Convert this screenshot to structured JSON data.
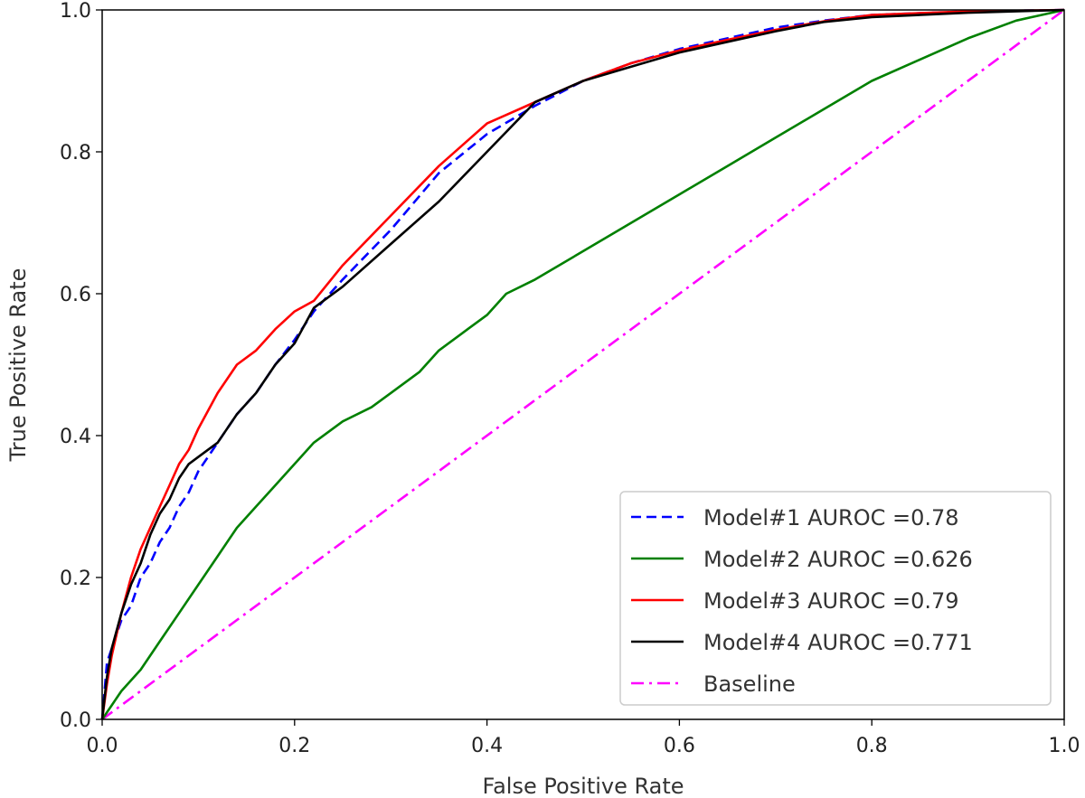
{
  "chart_data": {
    "type": "line",
    "title": "",
    "xlabel": "False Positive Rate",
    "ylabel": "True Positive Rate",
    "xlim": [
      0.0,
      1.0
    ],
    "ylim": [
      0.0,
      1.0
    ],
    "xticks": [
      "0.0",
      "0.2",
      "0.4",
      "0.6",
      "0.8",
      "1.0"
    ],
    "yticks": [
      "0.0",
      "0.2",
      "0.4",
      "0.6",
      "0.8",
      "1.0"
    ],
    "grid": false,
    "legend_position": "lower-right",
    "series": [
      {
        "name": "Model#1 AUROC =0.78",
        "color": "#0000ff",
        "style": "dashed",
        "points": [
          [
            0,
            0
          ],
          [
            0.005,
            0.08
          ],
          [
            0.01,
            0.1
          ],
          [
            0.02,
            0.14
          ],
          [
            0.03,
            0.16
          ],
          [
            0.04,
            0.2
          ],
          [
            0.05,
            0.22
          ],
          [
            0.06,
            0.25
          ],
          [
            0.07,
            0.27
          ],
          [
            0.08,
            0.3
          ],
          [
            0.09,
            0.32
          ],
          [
            0.1,
            0.35
          ],
          [
            0.12,
            0.39
          ],
          [
            0.14,
            0.43
          ],
          [
            0.16,
            0.46
          ],
          [
            0.18,
            0.5
          ],
          [
            0.2,
            0.535
          ],
          [
            0.22,
            0.575
          ],
          [
            0.25,
            0.62
          ],
          [
            0.3,
            0.69
          ],
          [
            0.35,
            0.77
          ],
          [
            0.4,
            0.825
          ],
          [
            0.45,
            0.865
          ],
          [
            0.5,
            0.9
          ],
          [
            0.55,
            0.925
          ],
          [
            0.6,
            0.945
          ],
          [
            0.65,
            0.96
          ],
          [
            0.7,
            0.975
          ],
          [
            0.75,
            0.985
          ],
          [
            0.8,
            0.993
          ],
          [
            0.9,
            0.998
          ],
          [
            1.0,
            1.0
          ]
        ]
      },
      {
        "name": "Model#2 AUROC =0.626",
        "color": "#008000",
        "style": "solid",
        "points": [
          [
            0,
            0
          ],
          [
            0.02,
            0.04
          ],
          [
            0.04,
            0.07
          ],
          [
            0.06,
            0.11
          ],
          [
            0.08,
            0.15
          ],
          [
            0.1,
            0.19
          ],
          [
            0.12,
            0.23
          ],
          [
            0.14,
            0.27
          ],
          [
            0.16,
            0.3
          ],
          [
            0.18,
            0.33
          ],
          [
            0.2,
            0.36
          ],
          [
            0.22,
            0.39
          ],
          [
            0.25,
            0.42
          ],
          [
            0.28,
            0.44
          ],
          [
            0.3,
            0.46
          ],
          [
            0.33,
            0.49
          ],
          [
            0.35,
            0.52
          ],
          [
            0.38,
            0.55
          ],
          [
            0.4,
            0.57
          ],
          [
            0.42,
            0.6
          ],
          [
            0.45,
            0.62
          ],
          [
            0.5,
            0.66
          ],
          [
            0.55,
            0.7
          ],
          [
            0.6,
            0.74
          ],
          [
            0.65,
            0.78
          ],
          [
            0.7,
            0.82
          ],
          [
            0.75,
            0.86
          ],
          [
            0.8,
            0.9
          ],
          [
            0.85,
            0.93
          ],
          [
            0.9,
            0.96
          ],
          [
            0.95,
            0.985
          ],
          [
            1.0,
            1.0
          ]
        ]
      },
      {
        "name": "Model#3 AUROC =0.79",
        "color": "#ff0000",
        "style": "solid",
        "points": [
          [
            0,
            0
          ],
          [
            0.005,
            0.05
          ],
          [
            0.01,
            0.09
          ],
          [
            0.02,
            0.15
          ],
          [
            0.03,
            0.2
          ],
          [
            0.04,
            0.24
          ],
          [
            0.05,
            0.27
          ],
          [
            0.06,
            0.3
          ],
          [
            0.07,
            0.33
          ],
          [
            0.08,
            0.36
          ],
          [
            0.09,
            0.38
          ],
          [
            0.1,
            0.41
          ],
          [
            0.12,
            0.46
          ],
          [
            0.14,
            0.5
          ],
          [
            0.16,
            0.52
          ],
          [
            0.18,
            0.55
          ],
          [
            0.2,
            0.575
          ],
          [
            0.22,
            0.59
          ],
          [
            0.25,
            0.64
          ],
          [
            0.3,
            0.71
          ],
          [
            0.35,
            0.78
          ],
          [
            0.4,
            0.84
          ],
          [
            0.45,
            0.87
          ],
          [
            0.5,
            0.9
          ],
          [
            0.55,
            0.925
          ],
          [
            0.6,
            0.943
          ],
          [
            0.65,
            0.958
          ],
          [
            0.7,
            0.972
          ],
          [
            0.75,
            0.984
          ],
          [
            0.8,
            0.993
          ],
          [
            0.9,
            0.998
          ],
          [
            1.0,
            1.0
          ]
        ]
      },
      {
        "name": "Model#4 AUROC =0.771",
        "color": "#000000",
        "style": "solid",
        "points": [
          [
            0,
            0
          ],
          [
            0.005,
            0.06
          ],
          [
            0.01,
            0.1
          ],
          [
            0.02,
            0.15
          ],
          [
            0.03,
            0.19
          ],
          [
            0.04,
            0.22
          ],
          [
            0.05,
            0.26
          ],
          [
            0.06,
            0.29
          ],
          [
            0.07,
            0.31
          ],
          [
            0.08,
            0.34
          ],
          [
            0.09,
            0.36
          ],
          [
            0.1,
            0.37
          ],
          [
            0.12,
            0.39
          ],
          [
            0.14,
            0.43
          ],
          [
            0.16,
            0.46
          ],
          [
            0.18,
            0.5
          ],
          [
            0.2,
            0.53
          ],
          [
            0.22,
            0.58
          ],
          [
            0.25,
            0.61
          ],
          [
            0.3,
            0.67
          ],
          [
            0.35,
            0.73
          ],
          [
            0.4,
            0.8
          ],
          [
            0.45,
            0.87
          ],
          [
            0.5,
            0.9
          ],
          [
            0.55,
            0.92
          ],
          [
            0.6,
            0.94
          ],
          [
            0.65,
            0.955
          ],
          [
            0.7,
            0.97
          ],
          [
            0.75,
            0.983
          ],
          [
            0.8,
            0.99
          ],
          [
            0.9,
            0.996
          ],
          [
            1.0,
            1.0
          ]
        ]
      },
      {
        "name": "Baseline",
        "color": "#ff00ff",
        "style": "dashdot",
        "points": [
          [
            0,
            0
          ],
          [
            1,
            1
          ]
        ]
      }
    ]
  }
}
